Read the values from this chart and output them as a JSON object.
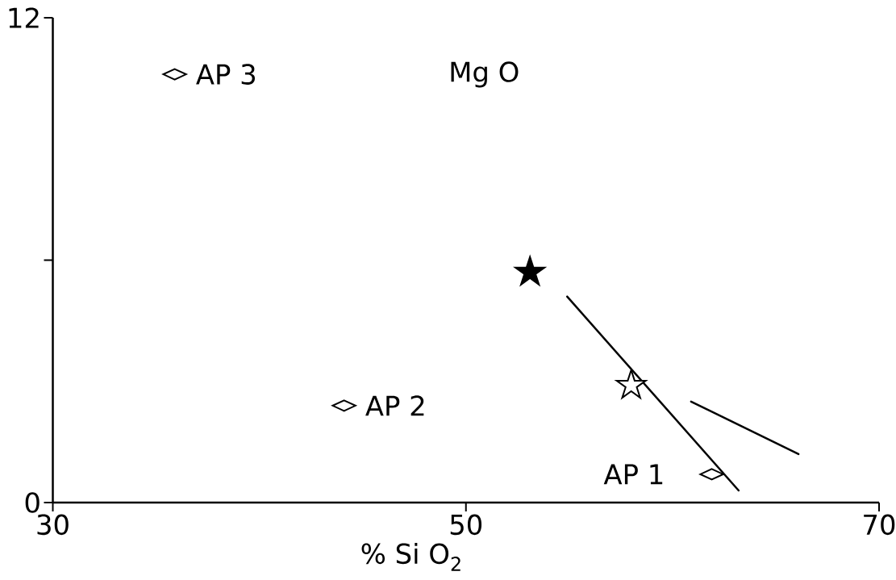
{
  "chart_data": {
    "type": "scatter",
    "xlabel": "% Si O$_{2}$",
    "ylabel": "Mg O",
    "xlim": [
      30,
      70
    ],
    "ylim": [
      0,
      12
    ],
    "xticks": [
      30,
      50,
      70
    ],
    "yticks": [
      0,
      {
        "value": 6,
        "label": null
      },
      12
    ],
    "series": [
      {
        "marker": "diamond",
        "color": "#ffffff",
        "x": [
          61.9,
          44.1,
          35.9
        ],
        "values": [
          0.7,
          2.4,
          10.6
        ]
      },
      {
        "marker": "star",
        "color": "#000000",
        "x": [
          53.1
        ],
        "values": [
          5.7
        ]
      },
      {
        "marker": "star",
        "color": "#ffffff",
        "x": [
          58.0
        ],
        "values": [
          2.9
        ]
      },
      {
        "type": "line",
        "marker": "none",
        "color": "#000000",
        "x": [
          54.9,
          63.2
        ],
        "values": [
          5.1,
          0.3
        ]
      },
      {
        "type": "line",
        "marker": "none",
        "color": "#000000",
        "x": [
          60.9,
          66.1
        ],
        "values": [
          2.5,
          1.2
        ]
      }
    ],
    "annotations": [
      {
        "text": "AP 1",
        "x": 61.9,
        "y": 0.7
      },
      {
        "text": "AP 2",
        "x": 44.1,
        "y": 2.4
      },
      {
        "text": "AP 3",
        "x": 35.9,
        "y": 10.6
      }
    ]
  }
}
